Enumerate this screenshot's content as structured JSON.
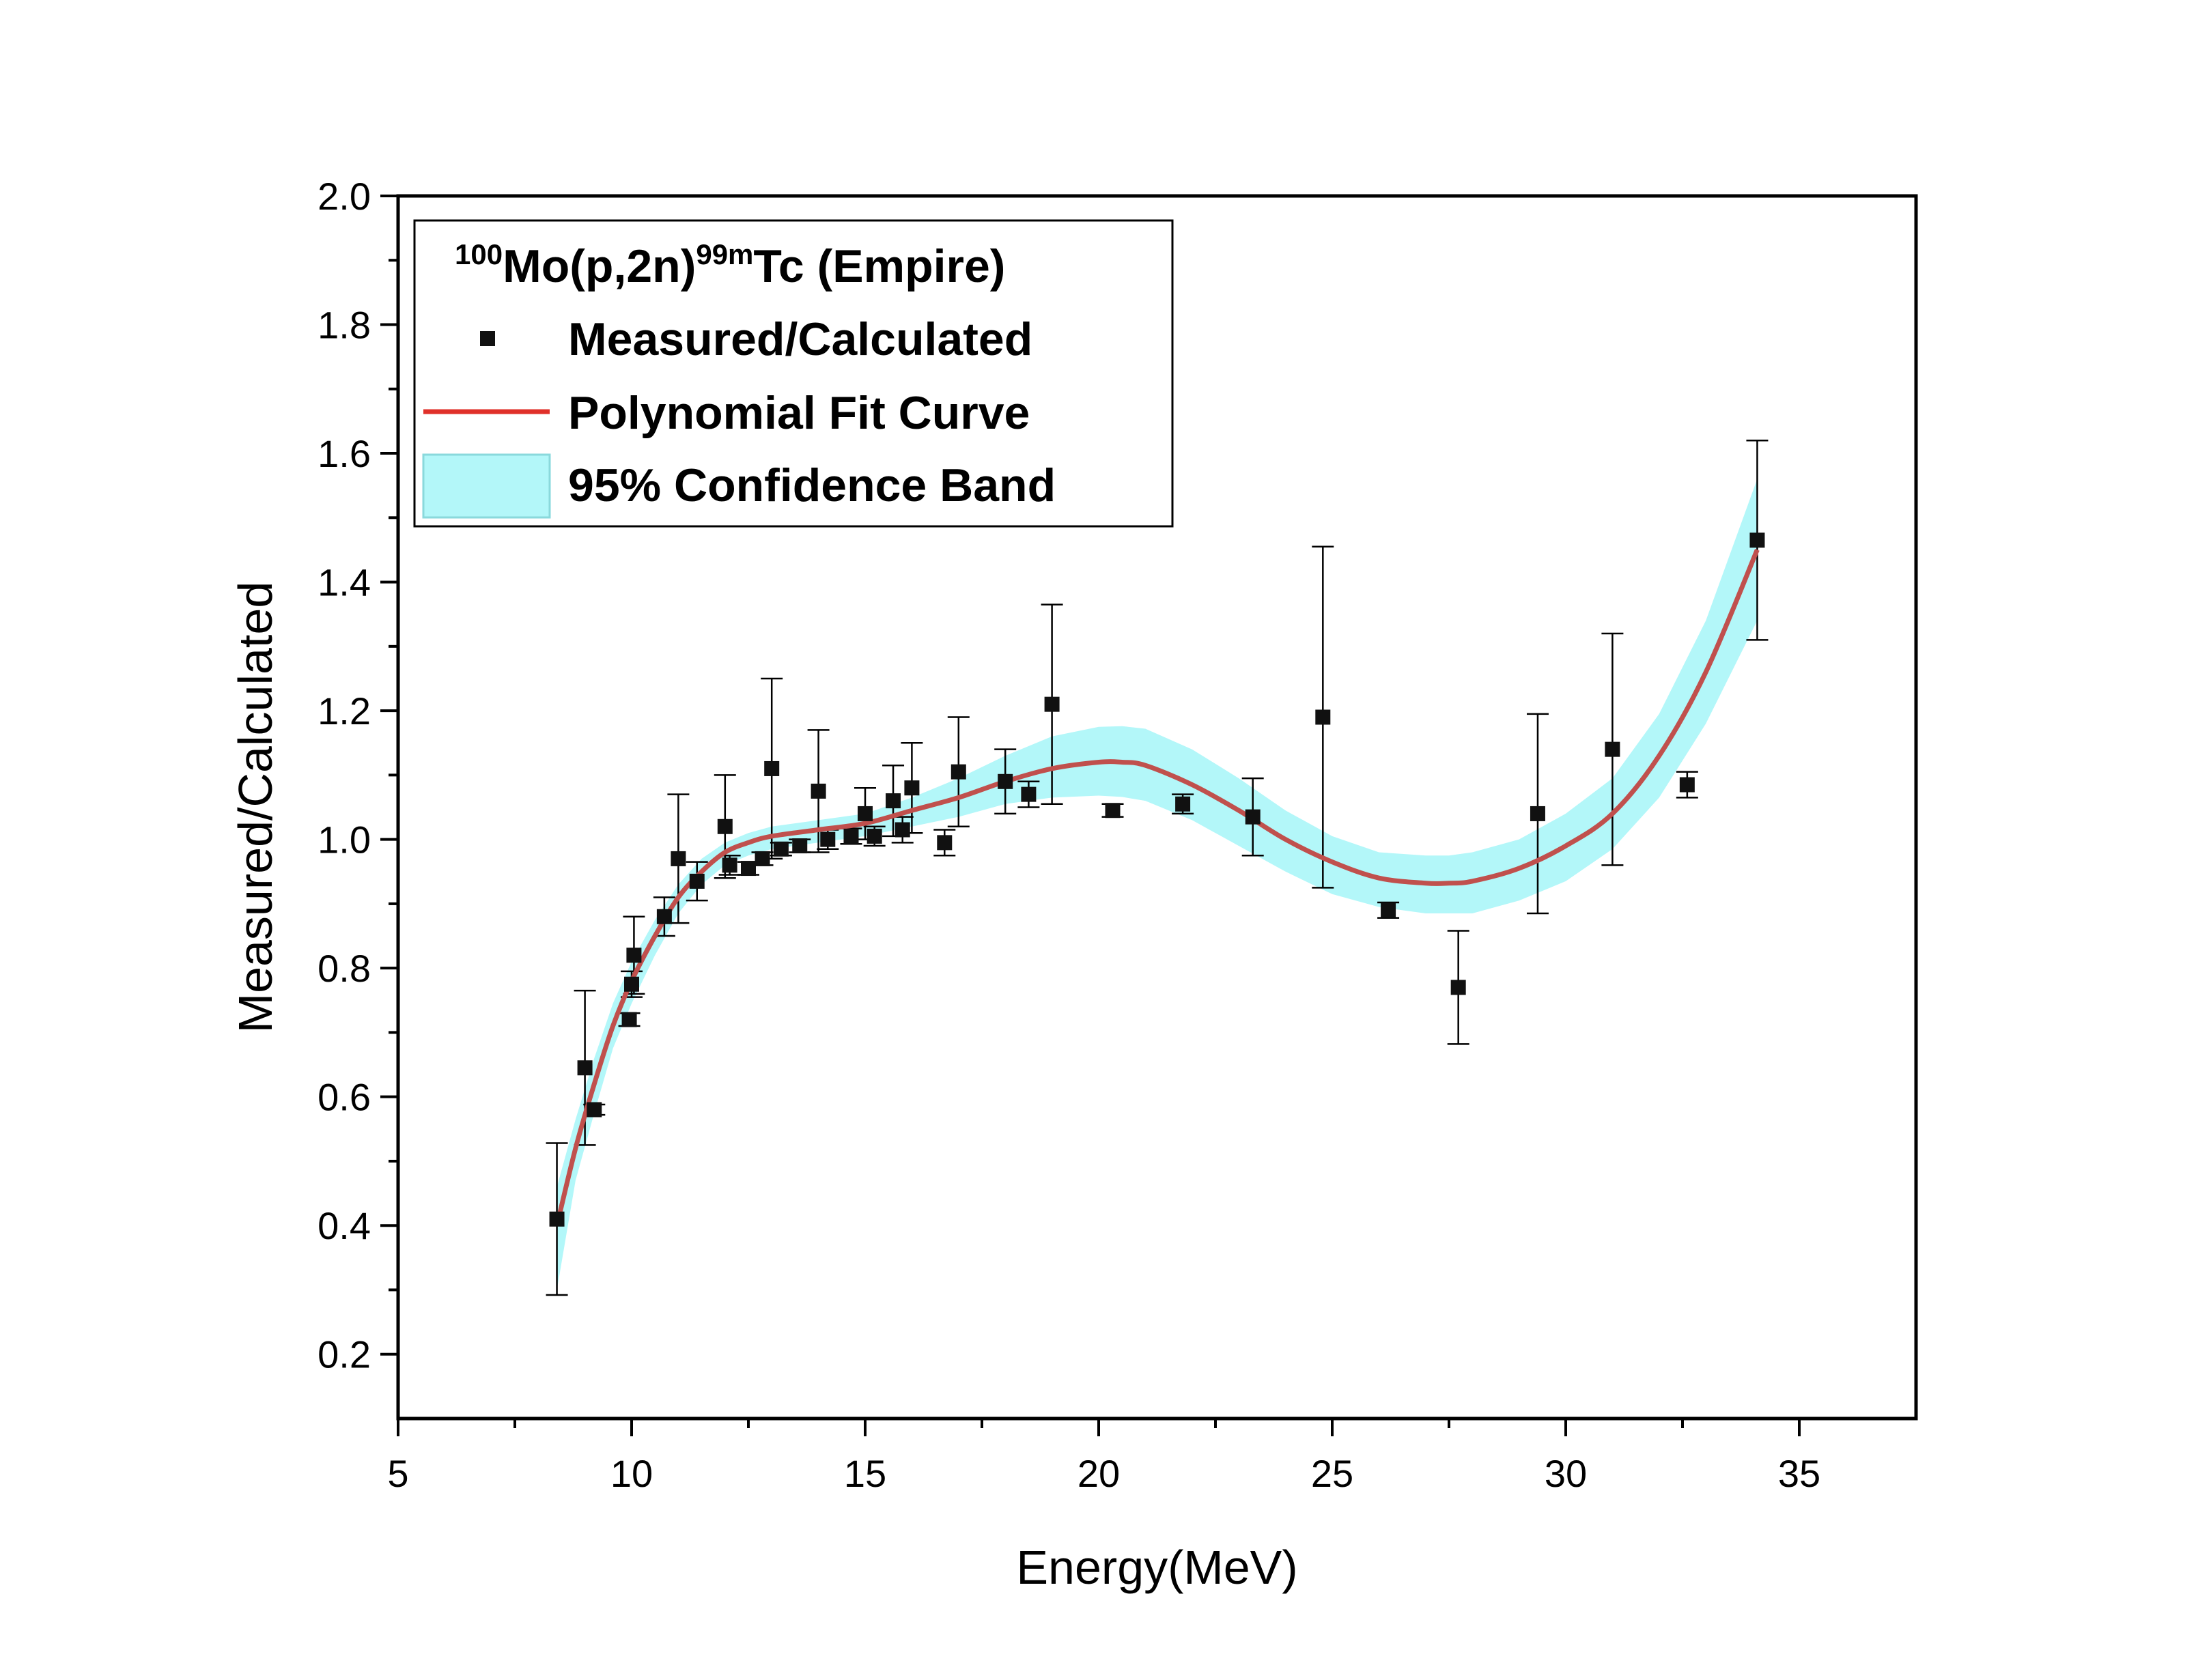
{
  "chart_data": {
    "type": "scatter",
    "xlabel": "Energy(MeV)",
    "ylabel": "Measured/Calculated",
    "xlim": [
      5,
      37.5
    ],
    "ylim": [
      0.1,
      2.0
    ],
    "xticks": [
      5,
      10,
      15,
      20,
      25,
      30,
      35
    ],
    "xtick_labels": [
      "5",
      "10",
      "15",
      "20",
      "25",
      "30",
      "35"
    ],
    "yticks": [
      0.2,
      0.4,
      0.6,
      0.8,
      1.0,
      1.2,
      1.4,
      1.6,
      1.8,
      2.0
    ],
    "ytick_labels": [
      "0.2",
      "0.4",
      "0.6",
      "0.8",
      "1.0",
      "1.2",
      "1.4",
      "1.6",
      "1.8",
      "2.0"
    ],
    "legend_position": "top-left",
    "legend": {
      "title": {
        "pre": "100",
        "mid": "Mo(p,2n)",
        "sup": "99m",
        "post": "Tc (Empire)"
      },
      "entries": [
        "Measured/Calculated",
        "Polynomial Fit Curve",
        "95% Confidence Band"
      ]
    },
    "colors": {
      "points": "#111111",
      "fit": "#c0504d",
      "band": "#b3f7f9",
      "band_edge": "#8ad9dc",
      "errorbar": "#000000"
    },
    "series": [
      {
        "name": "Measured/Calculated",
        "points": [
          {
            "x": 8.4,
            "y": 0.41,
            "err": 0.118
          },
          {
            "x": 9.0,
            "y": 0.645,
            "err": 0.12
          },
          {
            "x": 9.2,
            "y": 0.58,
            "err": 0.008
          },
          {
            "x": 9.95,
            "y": 0.72,
            "err": 0.01
          },
          {
            "x": 10.0,
            "y": 0.775,
            "err": 0.02
          },
          {
            "x": 10.05,
            "y": 0.82,
            "err": 0.06
          },
          {
            "x": 10.7,
            "y": 0.88,
            "err": 0.03
          },
          {
            "x": 11.0,
            "y": 0.97,
            "err": 0.1
          },
          {
            "x": 11.4,
            "y": 0.935,
            "err": 0.03
          },
          {
            "x": 12.0,
            "y": 1.02,
            "err": 0.08
          },
          {
            "x": 12.1,
            "y": 0.96,
            "err": 0.015
          },
          {
            "x": 12.5,
            "y": 0.955,
            "err": 0.01
          },
          {
            "x": 12.8,
            "y": 0.97,
            "err": 0.01
          },
          {
            "x": 13.0,
            "y": 1.11,
            "err": 0.14
          },
          {
            "x": 13.2,
            "y": 0.985,
            "err": 0.01
          },
          {
            "x": 13.6,
            "y": 0.99,
            "err": 0.01
          },
          {
            "x": 14.0,
            "y": 1.075,
            "err": 0.095
          },
          {
            "x": 14.2,
            "y": 1.0,
            "err": 0.015
          },
          {
            "x": 14.7,
            "y": 1.005,
            "err": 0.012
          },
          {
            "x": 15.0,
            "y": 1.04,
            "err": 0.04
          },
          {
            "x": 15.2,
            "y": 1.005,
            "err": 0.015
          },
          {
            "x": 15.6,
            "y": 1.06,
            "err": 0.055
          },
          {
            "x": 15.8,
            "y": 1.015,
            "err": 0.02
          },
          {
            "x": 16.0,
            "y": 1.08,
            "err": 0.07
          },
          {
            "x": 16.7,
            "y": 0.995,
            "err": 0.02
          },
          {
            "x": 17.0,
            "y": 1.105,
            "err": 0.085
          },
          {
            "x": 18.0,
            "y": 1.09,
            "err": 0.05
          },
          {
            "x": 18.5,
            "y": 1.07,
            "err": 0.02
          },
          {
            "x": 19.0,
            "y": 1.21,
            "err": 0.155
          },
          {
            "x": 20.3,
            "y": 1.045,
            "err": 0.01
          },
          {
            "x": 21.8,
            "y": 1.055,
            "err": 0.015
          },
          {
            "x": 23.3,
            "y": 1.035,
            "err": 0.06
          },
          {
            "x": 24.8,
            "y": 1.19,
            "err": 0.265
          },
          {
            "x": 26.2,
            "y": 0.89,
            "err": 0.012
          },
          {
            "x": 27.7,
            "y": 0.77,
            "err": 0.088
          },
          {
            "x": 29.4,
            "y": 1.04,
            "err": 0.155
          },
          {
            "x": 31.0,
            "y": 1.14,
            "err": 0.18
          },
          {
            "x": 32.6,
            "y": 1.085,
            "err": 0.02
          },
          {
            "x": 34.1,
            "y": 1.465,
            "err": 0.155
          }
        ]
      },
      {
        "name": "Polynomial Fit Curve",
        "x": [
          8.4,
          8.8,
          9.2,
          9.6,
          10.0,
          10.5,
          11.0,
          11.5,
          12.0,
          12.5,
          13.0,
          14.0,
          15.0,
          16.0,
          17.0,
          18.0,
          19.0,
          20.0,
          20.5,
          21.0,
          22.0,
          23.0,
          24.0,
          25.0,
          26.0,
          27.0,
          27.5,
          28.0,
          29.0,
          30.0,
          31.0,
          32.0,
          33.0,
          34.1
        ],
        "y": [
          0.4,
          0.52,
          0.62,
          0.71,
          0.78,
          0.85,
          0.91,
          0.95,
          0.98,
          0.995,
          1.005,
          1.015,
          1.025,
          1.045,
          1.065,
          1.09,
          1.11,
          1.12,
          1.12,
          1.115,
          1.085,
          1.045,
          1.0,
          0.965,
          0.94,
          0.932,
          0.932,
          0.935,
          0.955,
          0.99,
          1.04,
          1.13,
          1.26,
          1.45
        ]
      },
      {
        "name": "95% Confidence Band",
        "x": [
          8.4,
          8.8,
          9.2,
          9.6,
          10.0,
          10.5,
          11.0,
          11.5,
          12.0,
          12.5,
          13.0,
          14.0,
          15.0,
          16.0,
          17.0,
          18.0,
          19.0,
          20.0,
          20.5,
          21.0,
          22.0,
          23.0,
          24.0,
          25.0,
          26.0,
          27.0,
          27.5,
          28.0,
          29.0,
          30.0,
          31.0,
          32.0,
          33.0,
          34.1
        ],
        "upper": [
          0.46,
          0.565,
          0.66,
          0.745,
          0.81,
          0.875,
          0.93,
          0.97,
          0.995,
          1.01,
          1.02,
          1.03,
          1.04,
          1.065,
          1.095,
          1.13,
          1.16,
          1.175,
          1.176,
          1.172,
          1.14,
          1.095,
          1.045,
          1.005,
          0.98,
          0.975,
          0.975,
          0.98,
          1.0,
          1.04,
          1.095,
          1.195,
          1.34,
          1.56
        ],
        "lower": [
          0.3,
          0.47,
          0.575,
          0.675,
          0.745,
          0.82,
          0.885,
          0.93,
          0.96,
          0.975,
          0.985,
          0.995,
          1.005,
          1.02,
          1.035,
          1.055,
          1.065,
          1.068,
          1.066,
          1.06,
          1.03,
          0.99,
          0.95,
          0.915,
          0.895,
          0.885,
          0.885,
          0.885,
          0.905,
          0.935,
          0.985,
          1.065,
          1.18,
          1.34
        ]
      }
    ]
  }
}
